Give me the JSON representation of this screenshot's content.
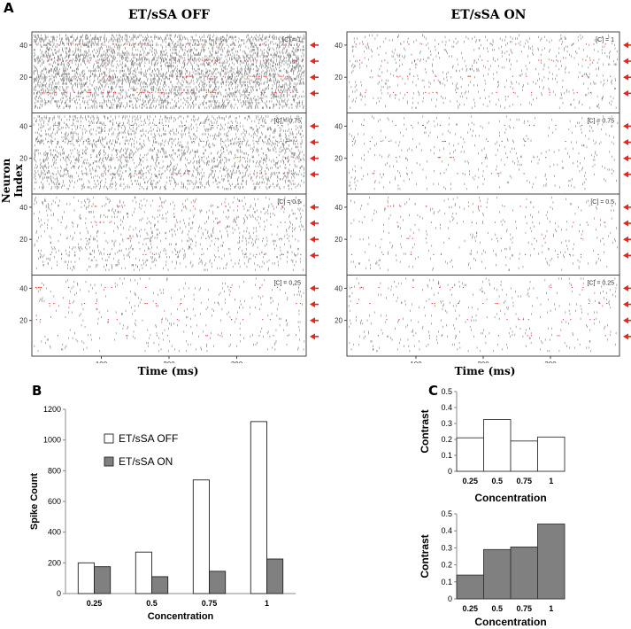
{
  "panel_letters": {
    "a": "A",
    "b": "B",
    "c": "C"
  },
  "panel_a": {
    "left_title": "ET/sSA OFF",
    "right_title": "ET/sSA ON",
    "ylabel": "Neuron Index",
    "xlabel": "Time (ms)",
    "x_ticks": [
      "100",
      "200",
      "300"
    ],
    "y_ticks": [
      "40",
      "20"
    ],
    "concentration_labels": [
      "[C] = 1",
      "[C] = 0.75",
      "[C] = 0.5",
      "[C] = 0.25"
    ],
    "concentrations": [
      1,
      0.75,
      0.5,
      0.25
    ],
    "density_off": [
      0.55,
      0.32,
      0.13,
      0.05
    ],
    "density_on": [
      0.09,
      0.05,
      0.05,
      0.05
    ],
    "arrow_color": "#e8261c",
    "highlight_color": "#e8261c",
    "spike_color": "#7a7a7a"
  },
  "chart_data": [
    {
      "id": "B",
      "type": "bar",
      "title": "",
      "xlabel": "Concentration",
      "ylabel": "Spike Count",
      "categories": [
        "0.25",
        "0.5",
        "0.75",
        "1"
      ],
      "series": [
        {
          "name": "ET/sSA OFF",
          "values": [
            200,
            270,
            740,
            1120
          ],
          "color": "#ffffff"
        },
        {
          "name": "ET/sSA ON",
          "values": [
            175,
            110,
            145,
            225
          ],
          "color": "#808080"
        }
      ],
      "ylim": [
        0,
        1200
      ],
      "yticks": [
        "0",
        "200",
        "400",
        "600",
        "800",
        "1000",
        "1200"
      ],
      "legend": "top-left"
    },
    {
      "id": "C-top",
      "type": "bar",
      "title": "",
      "xlabel": "Concentration",
      "ylabel": "Contrast",
      "categories": [
        "0.25",
        "0.5",
        "0.75",
        "1"
      ],
      "series": [
        {
          "name": "ET/sSA OFF",
          "values": [
            0.21,
            0.325,
            0.19,
            0.215
          ],
          "color": "#ffffff"
        }
      ],
      "ylim": [
        0,
        0.5
      ],
      "yticks": [
        "0",
        "0.1",
        "0.2",
        "0.3",
        "0.4",
        "0.5"
      ]
    },
    {
      "id": "C-bottom",
      "type": "bar",
      "title": "",
      "xlabel": "Concentration",
      "ylabel": "Contrast",
      "categories": [
        "0.25",
        "0.5",
        "0.75",
        "1"
      ],
      "series": [
        {
          "name": "ET/sSA ON",
          "values": [
            0.14,
            0.29,
            0.305,
            0.44
          ],
          "color": "#808080"
        }
      ],
      "ylim": [
        0,
        0.5
      ],
      "yticks": [
        "0",
        "0.1",
        "0.2",
        "0.3",
        "0.4",
        "0.5"
      ]
    }
  ]
}
